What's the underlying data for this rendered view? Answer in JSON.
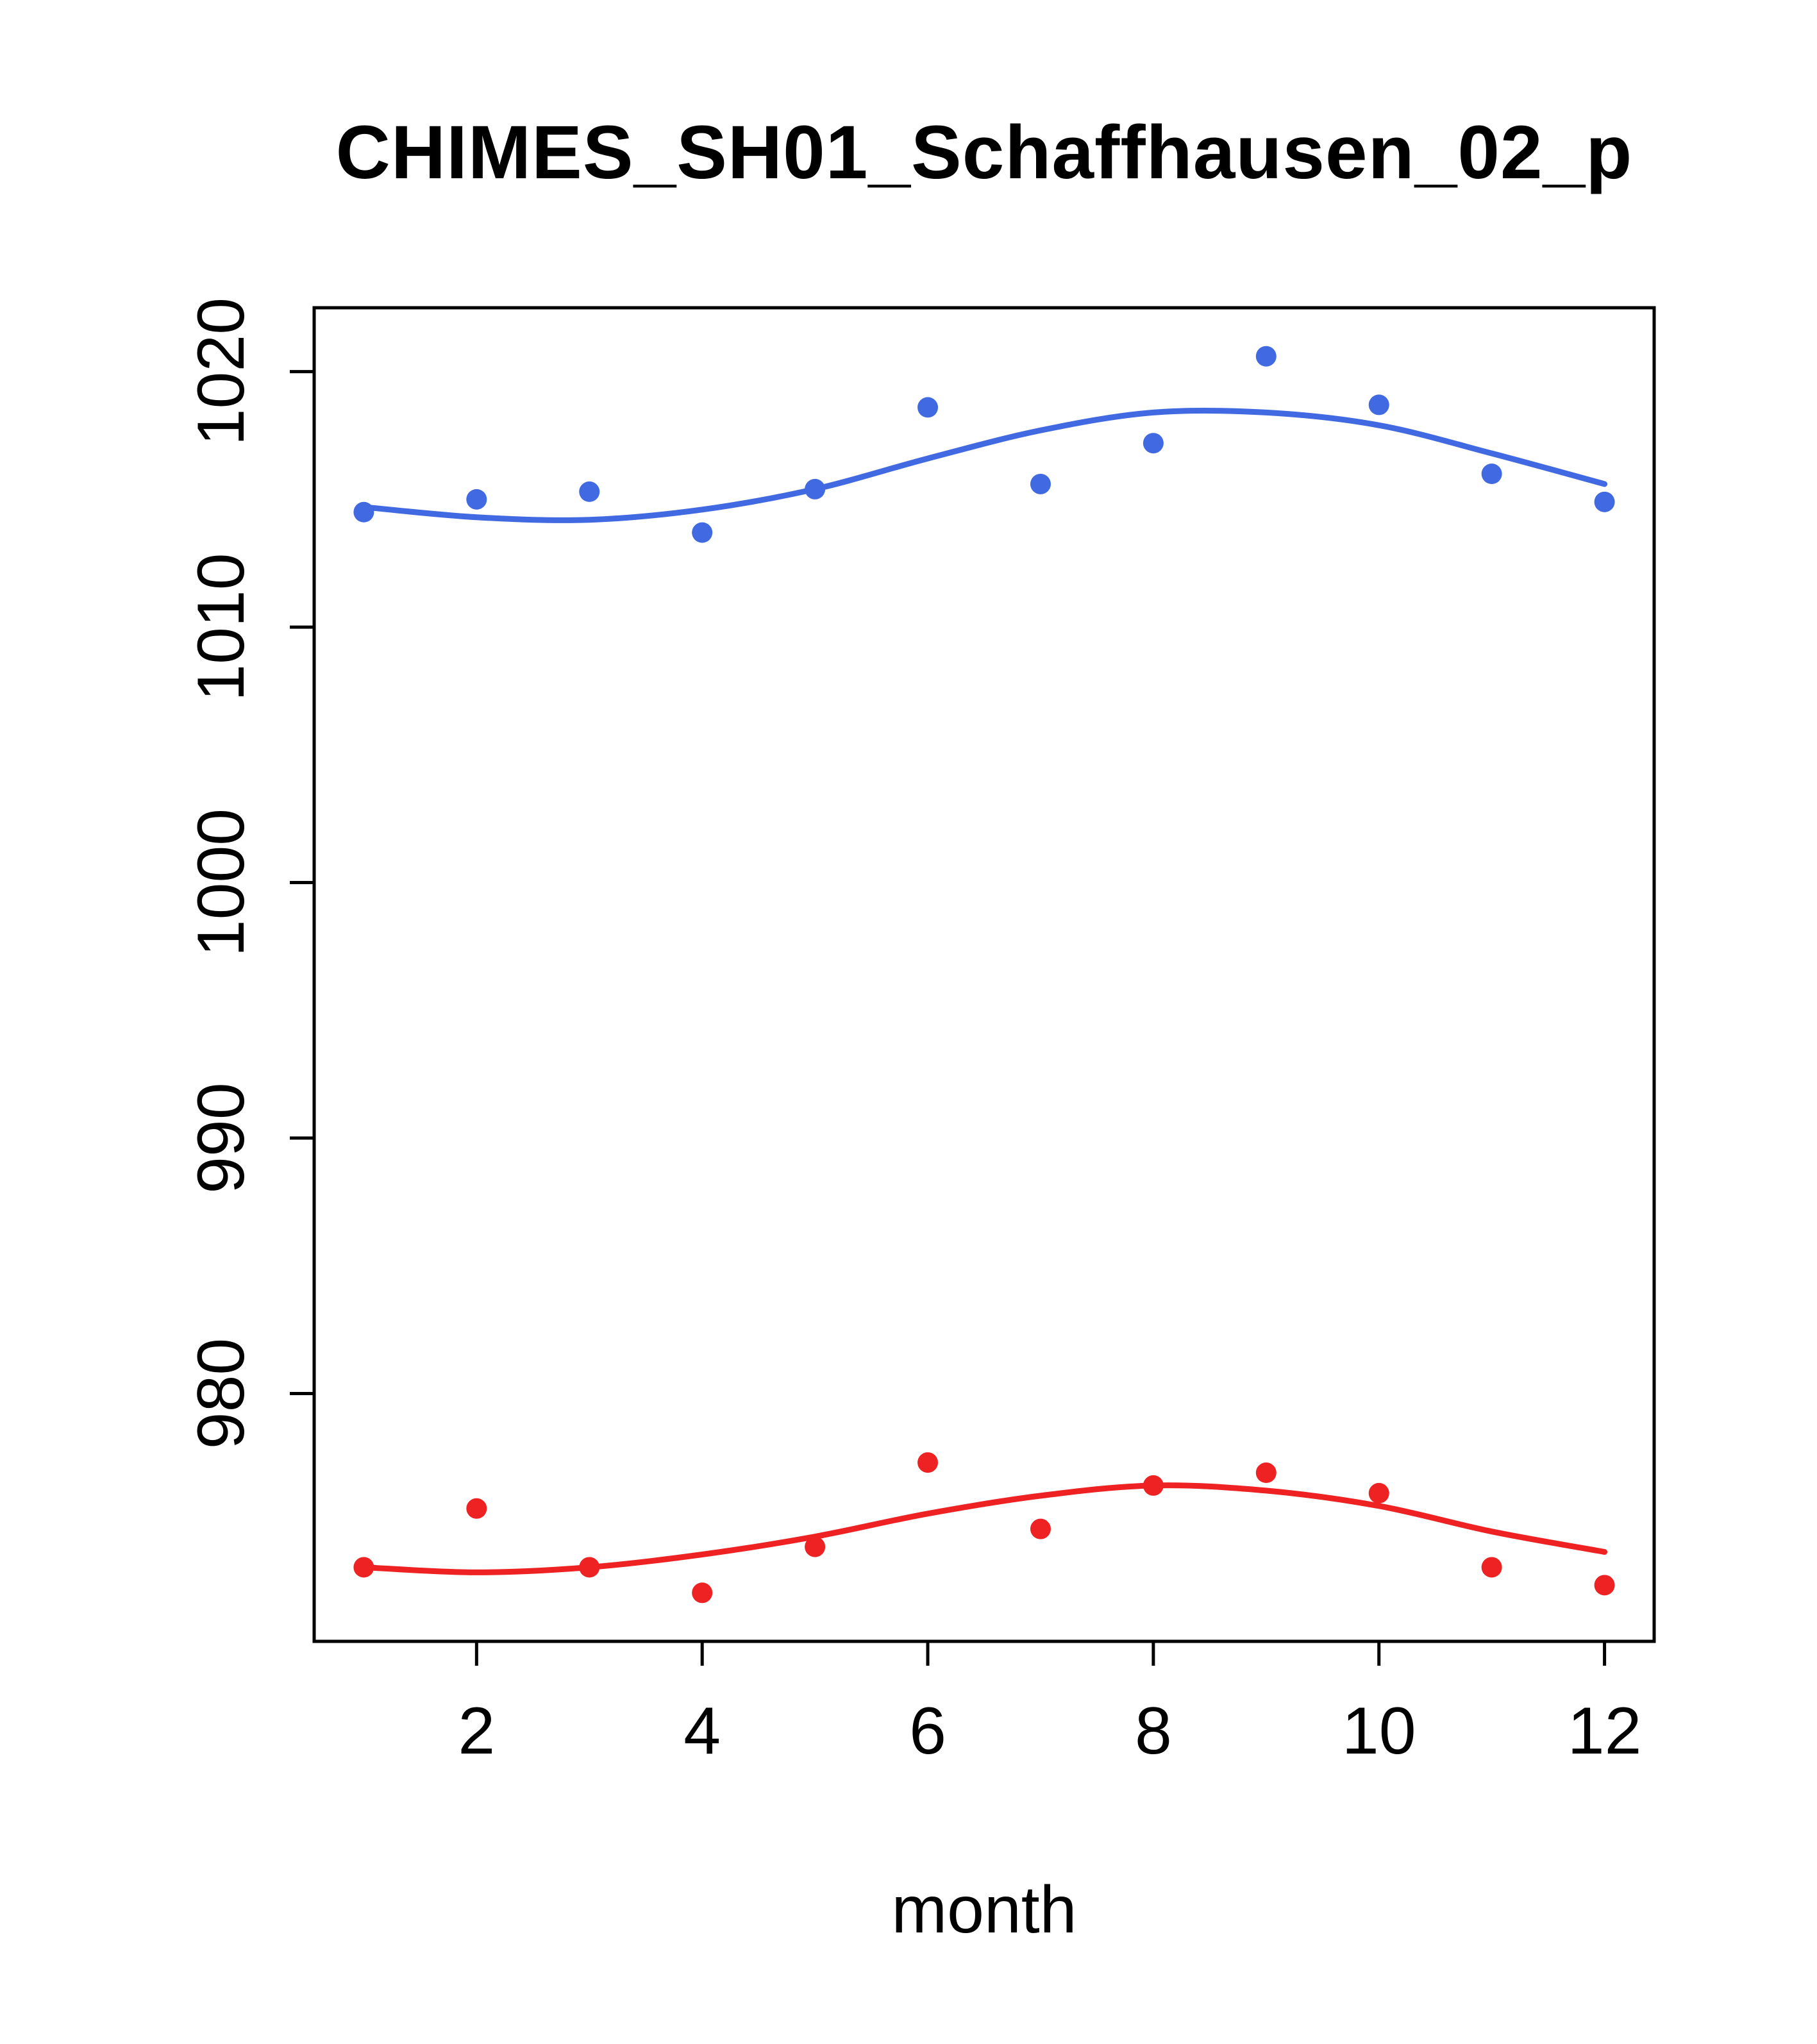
{
  "page": {
    "background": "#ffffff"
  },
  "chart_data": {
    "type": "scatter",
    "title": "CHIMES_SH01_Schaffhausen_02_p",
    "xlabel": "month",
    "ylabel": "",
    "x": [
      1,
      2,
      3,
      4,
      5,
      6,
      7,
      8,
      9,
      10,
      11,
      12
    ],
    "xlim": [
      0.56,
      12.44
    ],
    "ylim": [
      970.3,
      1022.5
    ],
    "xticks": [
      2,
      4,
      6,
      8,
      10,
      12
    ],
    "yticks": [
      980,
      990,
      1000,
      1010,
      1020
    ],
    "grid": false,
    "legend": "none",
    "axis_color": "#000000",
    "series": [
      {
        "name": "upper-series-blue",
        "color": "#4169E1",
        "points": [
          1014.5,
          1015.0,
          1015.3,
          1013.7,
          1015.4,
          1018.6,
          1015.6,
          1017.2,
          1020.6,
          1018.7,
          1016.0,
          1014.9
        ],
        "smooth_line": [
          1014.7,
          1014.3,
          1014.2,
          1014.6,
          1015.4,
          1016.6,
          1017.7,
          1018.4,
          1018.4,
          1017.9,
          1016.8,
          1015.6
        ]
      },
      {
        "name": "lower-series-red",
        "color": "#EE2222",
        "points": [
          973.2,
          975.5,
          973.2,
          972.2,
          974.0,
          977.3,
          974.7,
          976.4,
          976.9,
          976.1,
          973.2,
          972.5
        ],
        "smooth_line": [
          973.2,
          973.0,
          973.2,
          973.7,
          974.4,
          975.3,
          976.0,
          976.4,
          976.2,
          975.6,
          974.6,
          973.8
        ]
      }
    ]
  }
}
